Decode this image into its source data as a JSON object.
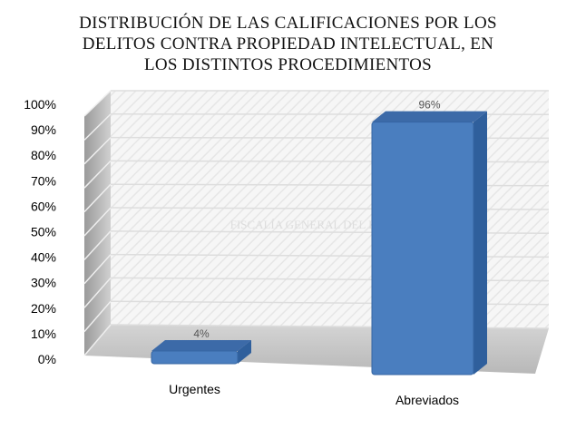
{
  "chart_data": {
    "type": "bar",
    "title_lines": [
      "DISTRIBUCIÓN DE LAS CALIFICACIONES POR LOS",
      "DELITOS CONTRA PROPIEDAD INTELECTUAL, EN",
      "LOS DISTINTOS PROCEDIMIENTOS"
    ],
    "categories": [
      "Urgentes",
      "Abreviados"
    ],
    "values": [
      4,
      96
    ],
    "data_labels": [
      "4%",
      "96%"
    ],
    "ylim": [
      0,
      100
    ],
    "yticks": [
      "0%",
      "10%",
      "20%",
      "30%",
      "40%",
      "50%",
      "60%",
      "70%",
      "80%",
      "90%",
      "100%"
    ],
    "grid": true,
    "style": "3d-column",
    "bar_color": "#4a7ebf",
    "watermark": "FISCALÍA GENERAL DEL ESTADO"
  }
}
